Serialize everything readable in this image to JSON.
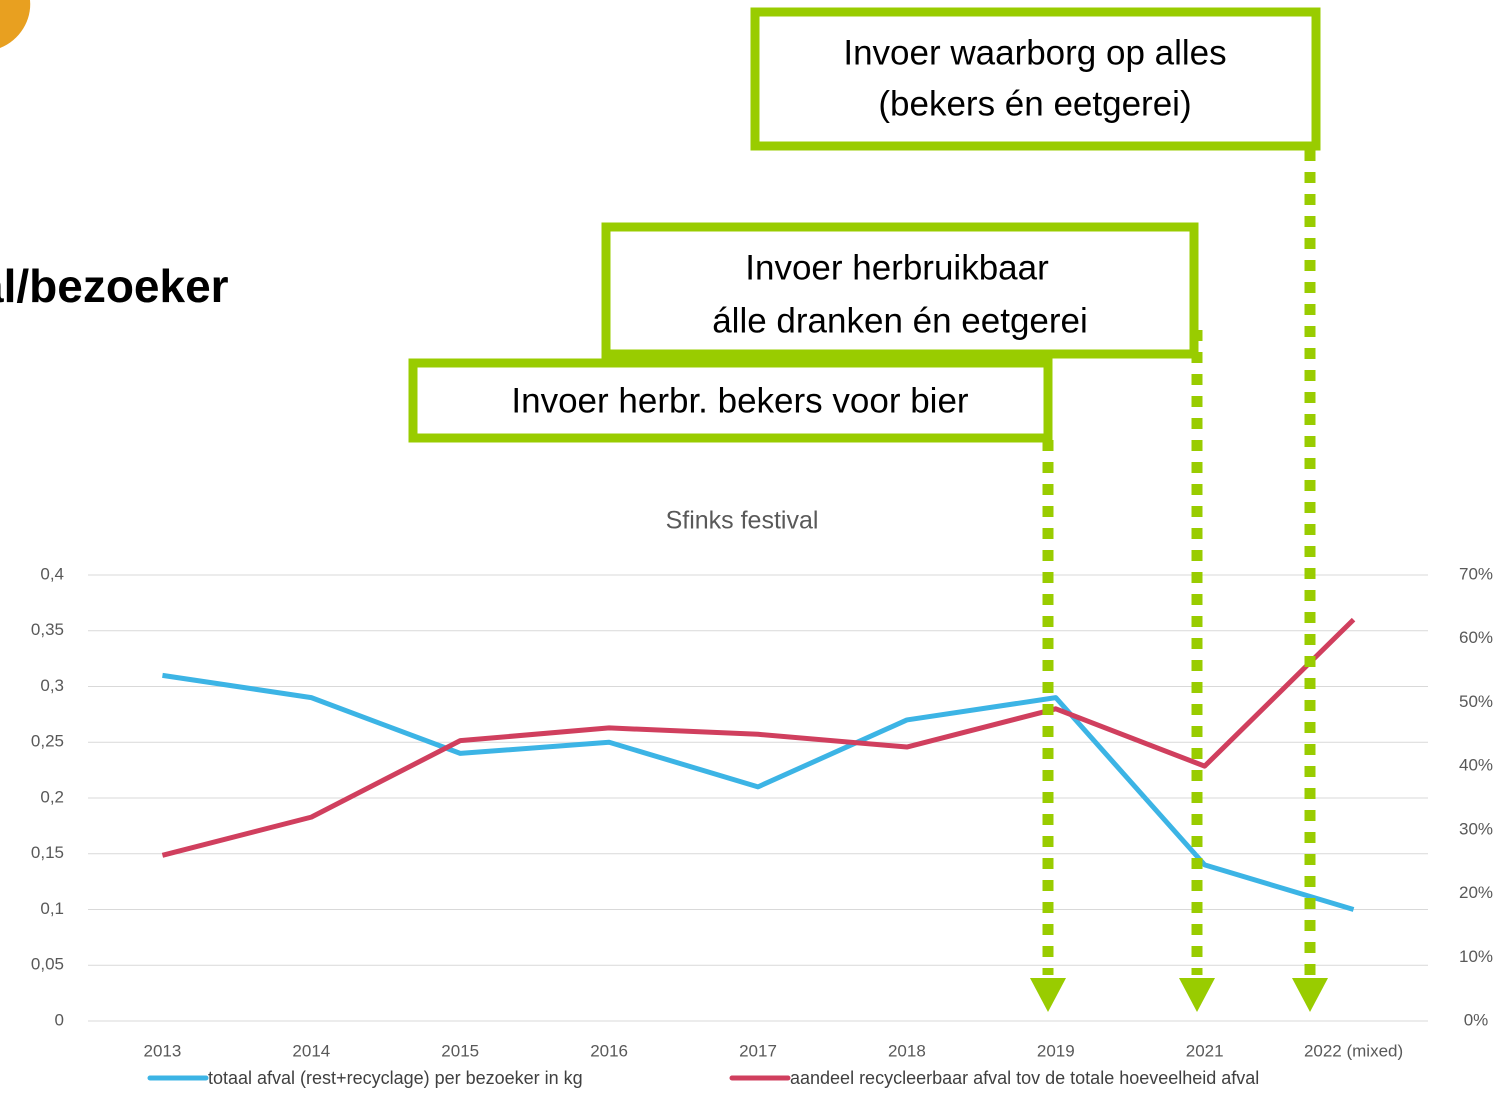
{
  "heading": "al/bezoeker",
  "chart_data": {
    "type": "line",
    "title": "Sfinks festival",
    "categories": [
      "2013",
      "2014",
      "2015",
      "2016",
      "2017",
      "2018",
      "2019",
      "2021",
      "2022 (mixed)"
    ],
    "series": [
      {
        "name": "totaal afval (rest+recyclage) per bezoeker in kg",
        "color": "#3cb4e5",
        "values": [
          0.31,
          0.29,
          0.24,
          0.25,
          0.21,
          0.27,
          0.29,
          0.14,
          0.1
        ]
      },
      {
        "name": "aandeel recycleerbaar afval tov de totale hoeveelheid afval",
        "color": "#d03f5e",
        "axis": "y2",
        "values": [
          26,
          32,
          44,
          46,
          45,
          43,
          49,
          40,
          63
        ]
      }
    ],
    "ylim": [
      0,
      0.4
    ],
    "yticks": [
      0,
      {
        "value": 0.05,
        "label": "0,05"
      },
      {
        "value": 0.1,
        "label": "0,1"
      },
      {
        "value": 0.15,
        "label": "0,15"
      },
      {
        "value": 0.2,
        "label": "0,2"
      },
      {
        "value": 0.25,
        "label": "0,25"
      },
      {
        "value": 0.3,
        "label": "0,3"
      },
      {
        "value": 0.35,
        "label": "0,35"
      },
      {
        "value": 0.4,
        "label": "0,4"
      }
    ],
    "y2lim": [
      0,
      70
    ],
    "y2ticks": [
      {
        "value": 0,
        "label": "0%"
      },
      {
        "value": 10,
        "label": "10%"
      },
      {
        "value": 20,
        "label": "20%"
      },
      {
        "value": 30,
        "label": "30%"
      },
      {
        "value": 40,
        "label": "40%"
      },
      {
        "value": 50,
        "label": "50%"
      },
      {
        "value": 60,
        "label": "60%"
      },
      {
        "value": 70,
        "label": "70%"
      }
    ],
    "grid": true,
    "annotations": [
      {
        "lines": [
          "Invoer waarborg op alles",
          "(bekers én eetgerei)"
        ]
      },
      {
        "lines": [
          "Invoer herbruikbaar",
          "álle dranken én eetgerei"
        ]
      },
      {
        "lines": [
          "Invoer herbr. bekers voor bier"
        ]
      }
    ]
  }
}
